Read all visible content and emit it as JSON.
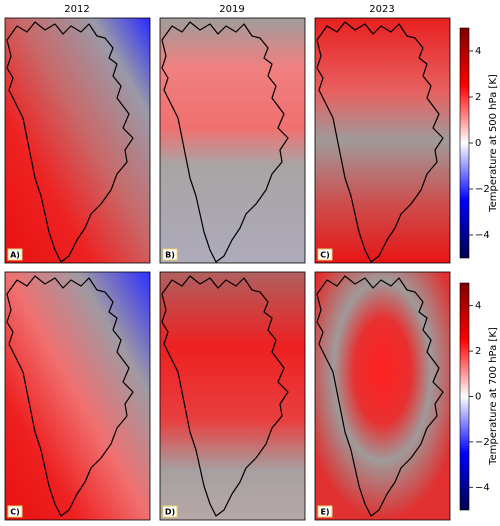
{
  "columns": [
    "2012",
    "2019",
    "2023"
  ],
  "rows": [
    {
      "panels": [
        "A)",
        "B)",
        "C)"
      ],
      "colorbar": {
        "label": "Temperature at 500 hPa [K]",
        "range": [
          -5,
          5
        ],
        "ticks": [
          4,
          2,
          0,
          {
            "value": -2,
            "label": "−2"
          },
          {
            "value": -4,
            "label": "−4"
          }
        ]
      }
    },
    {
      "panels": [
        "C)",
        "D)",
        "E)"
      ],
      "colorbar": {
        "label": "Temperature at 700 hPa [K]",
        "range": [
          -5,
          5
        ],
        "ticks": [
          4,
          2,
          0,
          {
            "value": -2,
            "label": "−2"
          },
          {
            "value": -4,
            "label": "−4"
          }
        ]
      }
    }
  ]
}
